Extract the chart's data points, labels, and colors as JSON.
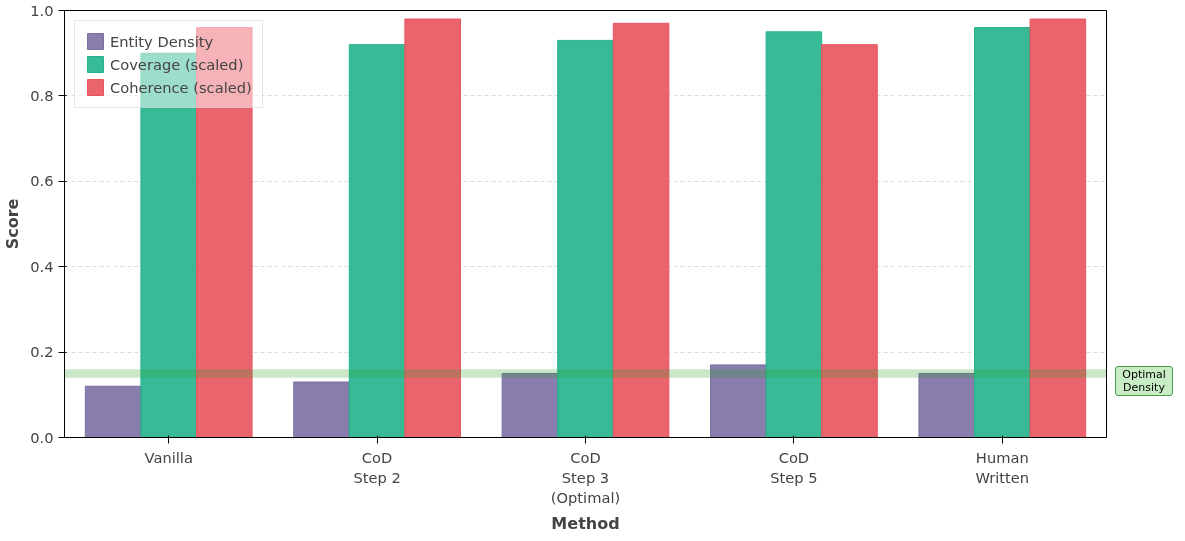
{
  "chart_data": {
    "type": "bar",
    "xlabel": "Method",
    "ylabel": "Score",
    "categories": [
      "Vanilla",
      "CoD\nStep 2",
      "CoD\nStep 3\n(Optimal)",
      "CoD\nStep 5",
      "Human\nWritten"
    ],
    "series": [
      {
        "name": "Entity Density",
        "color": "#7b6fa3",
        "values": [
          0.12,
          0.13,
          0.15,
          0.17,
          0.15
        ]
      },
      {
        "name": "Coverage (scaled)",
        "color": "#22b38c",
        "values": [
          0.9,
          0.92,
          0.93,
          0.95,
          0.96
        ]
      },
      {
        "name": "Coherence (scaled)",
        "color": "#e8535e",
        "values": [
          0.96,
          0.98,
          0.97,
          0.92,
          0.98
        ]
      }
    ],
    "ylim": [
      0,
      1.0
    ],
    "yticks": [
      {
        "value": 0,
        "label": "0.0"
      },
      0.2,
      0.4,
      0.6,
      0.8,
      {
        "value": 1,
        "label": "1.0"
      }
    ],
    "bands": [
      {
        "axis": "y",
        "from": 0.14,
        "to": 0.16,
        "label": "Optimal\nDensity",
        "color": "#2ca02c"
      }
    ],
    "grid": "y",
    "legend": "top left"
  }
}
